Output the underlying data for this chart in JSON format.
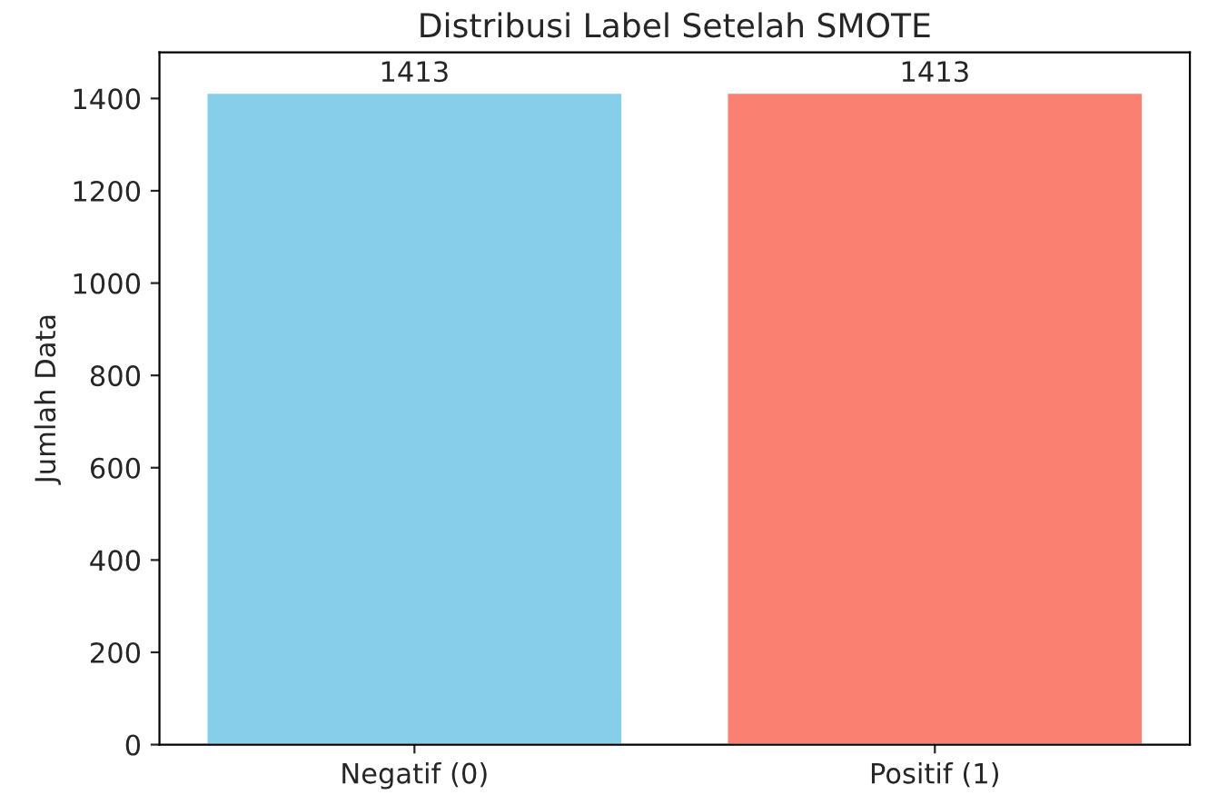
{
  "chart_data": {
    "type": "bar",
    "title": "Distribusi Label Setelah SMOTE",
    "ylabel": "Jumlah Data",
    "categories": [
      "Negatif (0)",
      "Positif (1)"
    ],
    "values": [
      1413,
      1413
    ],
    "colors": [
      "#87ceeb",
      "#fa8072"
    ],
    "ylim": [
      0,
      1500
    ],
    "yticks": [
      0,
      200,
      400,
      600,
      800,
      1000,
      1200,
      1400
    ],
    "data_labels": true,
    "grid": false
  }
}
